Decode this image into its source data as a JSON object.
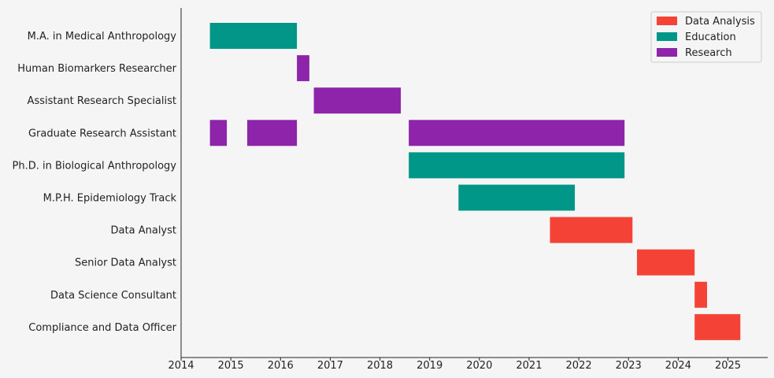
{
  "chart_data": {
    "type": "bar",
    "orientation": "horizontal",
    "title": "",
    "xlabel": "",
    "ylabel": "",
    "xlim": [
      2014.0,
      2025.8
    ],
    "x_ticks": [
      "2014",
      "2015",
      "2016",
      "2017",
      "2018",
      "2019",
      "2020",
      "2021",
      "2022",
      "2023",
      "2024",
      "2025"
    ],
    "categories": [
      "M.A. in Medical Anthropology",
      "Human Biomarkers Researcher",
      "Assistant Research Specialist",
      "Graduate Research Assistant",
      "Ph.D. in Biological Anthropology",
      "M.P.H. Epidemiology Track",
      "Data Analyst",
      "Senior Data Analyst",
      "Data Science Consultant",
      "Compliance and Data Officer"
    ],
    "series": [
      {
        "name": "Data Analysis",
        "color": "#f44336"
      },
      {
        "name": "Education",
        "color": "#009688"
      },
      {
        "name": "Research",
        "color": "#8e24aa"
      }
    ],
    "bars": [
      {
        "category": "M.A. in Medical Anthropology",
        "series": "Education",
        "start": 2014.58,
        "end": 2016.33
      },
      {
        "category": "Human Biomarkers Researcher",
        "series": "Research",
        "start": 2016.33,
        "end": 2016.58
      },
      {
        "category": "Assistant Research Specialist",
        "series": "Research",
        "start": 2016.67,
        "end": 2018.42
      },
      {
        "category": "Graduate Research Assistant",
        "series": "Research",
        "start": 2014.58,
        "end": 2014.92
      },
      {
        "category": "Graduate Research Assistant",
        "series": "Research",
        "start": 2015.33,
        "end": 2016.33
      },
      {
        "category": "Graduate Research Assistant",
        "series": "Research",
        "start": 2018.58,
        "end": 2022.92
      },
      {
        "category": "Ph.D. in Biological Anthropology",
        "series": "Education",
        "start": 2018.58,
        "end": 2022.92
      },
      {
        "category": "M.P.H. Epidemiology Track",
        "series": "Education",
        "start": 2019.58,
        "end": 2021.92
      },
      {
        "category": "Data Analyst",
        "series": "Data Analysis",
        "start": 2021.42,
        "end": 2023.08
      },
      {
        "category": "Senior Data Analyst",
        "series": "Data Analysis",
        "start": 2023.17,
        "end": 2024.33
      },
      {
        "category": "Data Science Consultant",
        "series": "Data Analysis",
        "start": 2024.33,
        "end": 2024.58
      },
      {
        "category": "Compliance and Data Officer",
        "series": "Data Analysis",
        "start": 2024.33,
        "end": 2025.25
      }
    ],
    "grid": false,
    "legend": "top-right"
  }
}
